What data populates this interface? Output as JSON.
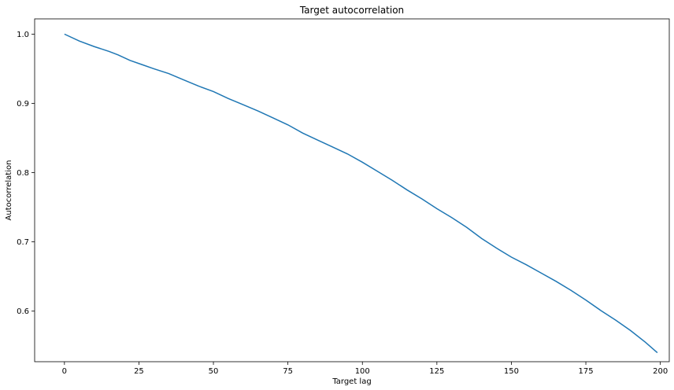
{
  "chart_data": {
    "type": "line",
    "title": "Target autocorrelation",
    "xlabel": "Target lag",
    "ylabel": "Autocorrelation",
    "xlim": [
      -10,
      203
    ],
    "ylim": [
      0.527,
      1.022
    ],
    "xticks": [
      0,
      25,
      50,
      75,
      100,
      125,
      150,
      175,
      200
    ],
    "yticks": [
      0.6,
      0.7,
      0.8,
      0.9,
      1.0
    ],
    "xtick_labels": [
      "0",
      "25",
      "50",
      "75",
      "100",
      "125",
      "150",
      "175",
      "200"
    ],
    "ytick_labels": [
      "0.6",
      "0.7",
      "0.8",
      "0.9",
      "1.0"
    ],
    "grid": false,
    "series": [
      {
        "color": "#1f77b4",
        "x": [
          0,
          5,
          10,
          15,
          18,
          22,
          26,
          30,
          35,
          40,
          45,
          50,
          55,
          60,
          65,
          70,
          75,
          80,
          85,
          90,
          95,
          100,
          105,
          110,
          115,
          120,
          125,
          130,
          135,
          140,
          145,
          150,
          155,
          160,
          165,
          170,
          175,
          180,
          185,
          190,
          195,
          199
        ],
        "y": [
          1.0,
          0.99,
          0.982,
          0.975,
          0.97,
          0.962,
          0.956,
          0.95,
          0.943,
          0.934,
          0.925,
          0.917,
          0.907,
          0.898,
          0.889,
          0.879,
          0.869,
          0.857,
          0.847,
          0.837,
          0.827,
          0.815,
          0.802,
          0.789,
          0.775,
          0.762,
          0.748,
          0.735,
          0.721,
          0.705,
          0.691,
          0.678,
          0.667,
          0.655,
          0.643,
          0.63,
          0.616,
          0.601,
          0.587,
          0.572,
          0.555,
          0.54
        ]
      }
    ]
  }
}
